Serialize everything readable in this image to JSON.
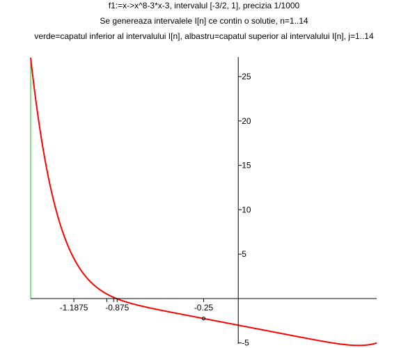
{
  "chart_data": {
    "type": "line",
    "titles": [
      "f1:=x->x^8-3*x-3, intervalul [-3/2, 1], precizia 1/1000",
      "Se genereaza intervalele I[n] ce contin o solutie, n=1..14",
      "verde=capatul inferior al intervalului I[n], albastru=capatul superior al intervalului I[n], j=1..14"
    ],
    "xlim": [
      -1.5,
      1
    ],
    "ylim": [
      -5.1,
      27.2
    ],
    "x_tick_labels": [
      {
        "value": -1.1875,
        "label": "-1.1875"
      },
      {
        "value": -0.875,
        "label": "-0.875"
      },
      {
        "value": -0.25,
        "label": "-0.25"
      }
    ],
    "x_minor_ticks": [
      -0.95,
      -0.9
    ],
    "y_ticks": [
      -5,
      5,
      10,
      15,
      20,
      25
    ],
    "y_tick_labels": [
      "-5",
      "5",
      "10",
      "15",
      "20",
      "25"
    ],
    "function": {
      "expression": "x^8-3*x-3",
      "color": "#ff0000",
      "coefficients": {
        "x8": 1,
        "x1": -3,
        "x0": -3
      }
    },
    "lower_endpoint_color": "#00cc00",
    "upper_endpoint_color": "#0000ff",
    "lower_endpoints": [
      -1.5
    ],
    "marked_point": {
      "x": -0.25,
      "y": -2.25
    }
  }
}
